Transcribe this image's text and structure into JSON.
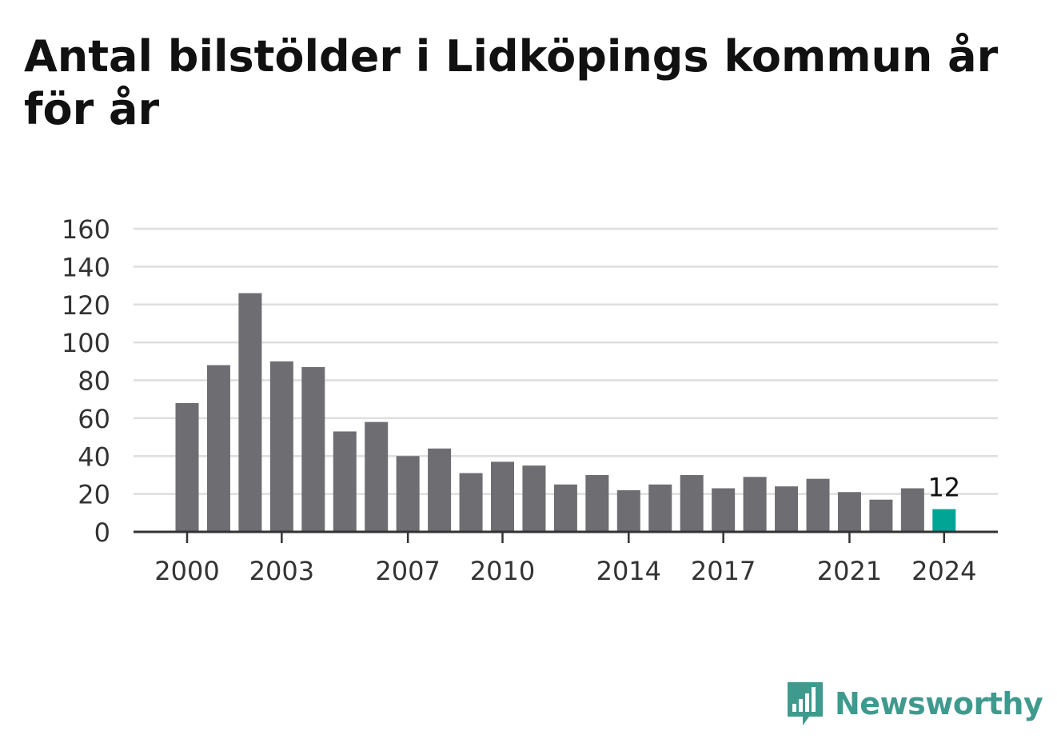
{
  "title": "Antal bilstölder i Lidköpings kommun år för år",
  "brand": {
    "name": "Newsworthy",
    "logo_icon": "bar-chart-speech-bubble-icon",
    "color": "#3f9a8e"
  },
  "chart_data": {
    "type": "bar",
    "title": "Antal bilstölder i Lidköpings kommun år för år",
    "xlabel": "",
    "ylabel": "",
    "categories": [
      2000,
      2001,
      2002,
      2003,
      2004,
      2005,
      2006,
      2007,
      2008,
      2009,
      2010,
      2011,
      2012,
      2013,
      2014,
      2015,
      2016,
      2017,
      2018,
      2019,
      2020,
      2021,
      2022,
      2023,
      2024
    ],
    "values": [
      68,
      88,
      126,
      90,
      87,
      53,
      58,
      40,
      44,
      31,
      37,
      35,
      25,
      30,
      22,
      25,
      30,
      23,
      29,
      24,
      28,
      21,
      17,
      23,
      12
    ],
    "ylim": [
      0,
      160
    ],
    "yticks": [
      0,
      20,
      40,
      60,
      80,
      100,
      120,
      140,
      160
    ],
    "xticks": [
      2000,
      2003,
      2007,
      2010,
      2014,
      2017,
      2021,
      2024
    ],
    "grid": true,
    "bar_color": "#6e6d72",
    "highlight": {
      "category": 2024,
      "color": "#00a596",
      "label": "12"
    }
  }
}
